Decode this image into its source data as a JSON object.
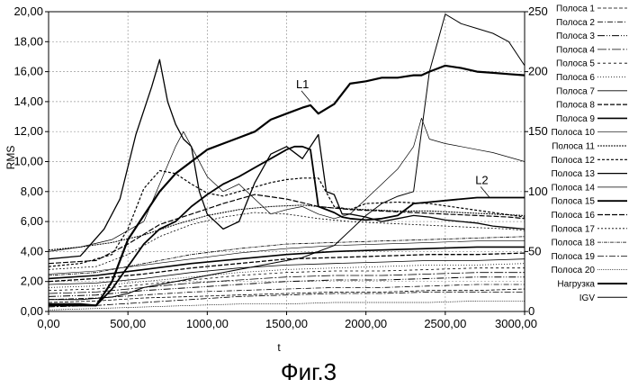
{
  "figure_caption": "Фиг.3",
  "chart_data": {
    "type": "line",
    "xlabel": "t",
    "ylabel": "RMS",
    "xlim": [
      0,
      3000
    ],
    "ylim": [
      0,
      20
    ],
    "y2lim": [
      0,
      250
    ],
    "grid": true,
    "legend_position": "right",
    "x_ticks": [
      "0,00",
      "500,00",
      "1000,00",
      "1500,00",
      "2000,00",
      "2500,00",
      "3000,00"
    ],
    "y_ticks": [
      "0,00",
      "2,00",
      "4,00",
      "6,00",
      "8,00",
      "10,00",
      "12,00",
      "14,00",
      "16,00",
      "18,00",
      "20,00"
    ],
    "y2_ticks": [
      "0",
      "50",
      "100",
      "150",
      "200",
      "250"
    ],
    "annotations": [
      {
        "text": "L1",
        "x": 1650,
        "y": 14.0
      },
      {
        "text": "L2",
        "x": 2780,
        "y": 7.6
      }
    ],
    "series": [
      {
        "name": "Полоса 1",
        "x": [
          0,
          300,
          600,
          900,
          1200,
          1500,
          1800,
          2100,
          2400,
          2700,
          3000
        ],
        "values": [
          0.6,
          0.7,
          0.9,
          1.0,
          1.1,
          1.2,
          1.3,
          1.3,
          1.4,
          1.4,
          1.5
        ]
      },
      {
        "name": "Полоса 2",
        "x": [
          0,
          300,
          600,
          900,
          1200,
          1500,
          1800,
          2100,
          2400,
          2700,
          3000
        ],
        "values": [
          0.8,
          0.9,
          1.1,
          1.3,
          1.4,
          1.5,
          1.6,
          1.6,
          1.7,
          1.8,
          1.8
        ]
      },
      {
        "name": "Полоса 3",
        "x": [
          0,
          300,
          600,
          900,
          1200,
          1500,
          1800,
          2100,
          2400,
          2700,
          3000
        ],
        "values": [
          1.0,
          1.1,
          1.4,
          1.6,
          1.8,
          2.0,
          2.1,
          2.1,
          2.2,
          2.3,
          2.3
        ]
      },
      {
        "name": "Полоса 4",
        "x": [
          0,
          300,
          600,
          900,
          1200,
          1500,
          1800,
          2100,
          2400,
          2700,
          3000
        ],
        "values": [
          1.2,
          1.3,
          1.6,
          1.9,
          2.1,
          2.3,
          2.4,
          2.4,
          2.5,
          2.6,
          2.6
        ]
      },
      {
        "name": "Полоса 5",
        "x": [
          0,
          300,
          600,
          900,
          1200,
          1500,
          1800,
          2100,
          2400,
          2700,
          3000
        ],
        "values": [
          1.4,
          1.5,
          1.8,
          2.1,
          2.4,
          2.6,
          2.7,
          2.7,
          2.8,
          2.9,
          2.9
        ]
      },
      {
        "name": "Полоса 6",
        "x": [
          0,
          300,
          600,
          900,
          1200,
          1500,
          1800,
          2100,
          2400,
          2700,
          3000
        ],
        "values": [
          1.6,
          1.7,
          2.0,
          2.3,
          2.6,
          2.8,
          2.9,
          3.0,
          3.1,
          3.1,
          3.2
        ]
      },
      {
        "name": "Полоса 7",
        "x": [
          0,
          300,
          600,
          900,
          1200,
          1500,
          1800,
          2100,
          2400,
          2700,
          3000
        ],
        "values": [
          1.8,
          1.9,
          2.2,
          2.6,
          2.9,
          3.1,
          3.2,
          3.3,
          3.4,
          3.4,
          3.5
        ]
      },
      {
        "name": "Полоса 8",
        "x": [
          0,
          300,
          600,
          900,
          1200,
          1500,
          1800,
          2100,
          2400,
          2700,
          3000
        ],
        "values": [
          2.0,
          2.2,
          2.5,
          2.9,
          3.2,
          3.5,
          3.6,
          3.7,
          3.8,
          3.8,
          3.9
        ]
      },
      {
        "name": "Полоса 9",
        "x": [
          0,
          300,
          600,
          900,
          1200,
          1500,
          1800,
          2100,
          2400,
          2700,
          3000
        ],
        "values": [
          2.2,
          2.4,
          2.8,
          3.2,
          3.5,
          3.8,
          4.0,
          4.1,
          4.2,
          4.3,
          4.3
        ]
      },
      {
        "name": "Полоса 10",
        "x": [
          0,
          300,
          600,
          900,
          1200,
          1500,
          1800,
          2100,
          2400,
          2700,
          3000
        ],
        "values": [
          2.5,
          2.7,
          3.1,
          3.5,
          3.9,
          4.2,
          4.4,
          4.5,
          4.6,
          4.7,
          4.7
        ]
      },
      {
        "name": "Полоса 11",
        "x": [
          0,
          200,
          400,
          600,
          800,
          1000,
          1200,
          1400,
          1600,
          1800,
          2000,
          2200,
          2400,
          2600,
          2800,
          3000
        ],
        "values": [
          4.1,
          4.3,
          4.6,
          5.1,
          5.8,
          6.4,
          6.8,
          7.0,
          7.1,
          6.9,
          6.8,
          6.7,
          6.7,
          6.6,
          6.5,
          6.4
        ]
      },
      {
        "name": "Полоса 12",
        "x": [
          0,
          200,
          400,
          500,
          600,
          700,
          800,
          900,
          1000,
          1100,
          1200,
          1300,
          1400,
          1500,
          1600,
          1700,
          1800,
          1900,
          2000,
          2200,
          2400,
          2600,
          2800,
          3000
        ],
        "values": [
          3.0,
          3.2,
          3.8,
          5.5,
          8.2,
          9.4,
          9.2,
          8.5,
          7.9,
          7.7,
          8.0,
          8.3,
          8.6,
          8.8,
          8.9,
          8.9,
          7.0,
          6.8,
          7.2,
          7.3,
          7.2,
          6.9,
          6.6,
          6.3
        ]
      },
      {
        "name": "Полоса 13",
        "x": [
          0,
          200,
          350,
          450,
          550,
          650,
          700,
          750,
          800,
          850,
          900,
          950,
          1000,
          1100,
          1200,
          1300,
          1400,
          1500,
          1600,
          1700,
          1750,
          1800,
          1850,
          1900,
          2000,
          2100,
          2200,
          2300,
          2400,
          2500,
          2600,
          2700,
          2800,
          2900,
          3000
        ],
        "values": [
          3.5,
          3.7,
          5.5,
          7.5,
          11.8,
          15.0,
          16.8,
          14.0,
          12.5,
          11.5,
          11.0,
          8.0,
          6.5,
          5.5,
          6.0,
          8.6,
          10.5,
          11.0,
          10.2,
          11.8,
          8.0,
          7.8,
          6.5,
          6.5,
          6.3,
          6.0,
          6.2,
          6.4,
          6.3,
          6.1,
          6.0,
          5.9,
          5.7,
          5.6,
          5.5
        ]
      },
      {
        "name": "Полоса 14",
        "x": [
          0,
          200,
          400,
          600,
          700,
          800,
          850,
          900,
          1000,
          1100,
          1200,
          1300,
          1400,
          1500,
          1600,
          1700,
          1800,
          1900,
          2000,
          2100,
          2200,
          2300,
          2350,
          2400,
          2500,
          2600,
          2700,
          2800,
          2900,
          3000
        ],
        "values": [
          4.0,
          4.3,
          4.8,
          6.0,
          8.5,
          11.0,
          12.0,
          11.0,
          9.0,
          8.0,
          8.5,
          7.5,
          6.5,
          6.8,
          7.0,
          6.5,
          6.2,
          6.5,
          7.5,
          8.5,
          9.5,
          11.0,
          12.9,
          11.5,
          11.2,
          11.0,
          10.8,
          10.6,
          10.3,
          10.0
        ]
      },
      {
        "name": "Полоса 15",
        "x": [
          0,
          200,
          300,
          400,
          500,
          600,
          700,
          800,
          900,
          1000,
          1100,
          1200,
          1300,
          1400,
          1500,
          1550,
          1600,
          1650,
          1700,
          1800,
          1850,
          1900,
          2000,
          2100,
          2200,
          2300,
          2400,
          2500,
          2600,
          2700,
          2800,
          2900,
          3000
        ],
        "values": [
          0.5,
          0.5,
          0.4,
          1.5,
          3.0,
          4.5,
          5.5,
          6.0,
          7.0,
          7.8,
          8.5,
          9.0,
          9.6,
          10.2,
          10.8,
          11.0,
          11.0,
          10.8,
          7.0,
          6.6,
          6.3,
          6.2,
          6.1,
          6.2,
          6.4,
          7.2,
          7.3,
          7.4,
          7.5,
          7.6,
          7.6,
          7.6,
          7.6
        ]
      },
      {
        "name": "Полоса 16",
        "x": [
          0,
          300,
          500,
          700,
          900,
          1100,
          1300,
          1500,
          1700,
          1900,
          2100,
          2300,
          2500,
          2700,
          2900,
          3000
        ],
        "values": [
          3.2,
          3.4,
          4.5,
          5.8,
          6.5,
          7.2,
          7.8,
          7.5,
          7.0,
          6.8,
          6.7,
          6.6,
          6.5,
          6.4,
          6.3,
          6.2
        ]
      },
      {
        "name": "Полоса 17",
        "x": [
          0,
          300,
          500,
          700,
          900,
          1100,
          1300,
          1500,
          1700,
          1900,
          2100,
          2300,
          2500,
          2700,
          2900,
          3000
        ],
        "values": [
          2.8,
          3.0,
          3.8,
          5.0,
          5.8,
          6.3,
          6.6,
          6.5,
          6.2,
          6.0,
          5.9,
          5.8,
          5.7,
          5.6,
          5.5,
          5.4
        ]
      },
      {
        "name": "Полоса 18",
        "x": [
          0,
          300,
          600,
          900,
          1200,
          1500,
          1800,
          2100,
          2400,
          2700,
          3000
        ],
        "values": [
          2.4,
          2.6,
          3.2,
          3.8,
          4.2,
          4.5,
          4.6,
          4.7,
          4.8,
          4.9,
          5.0
        ]
      },
      {
        "name": "Полоса 19",
        "x": [
          0,
          300,
          600,
          900,
          1200,
          1500,
          1800,
          2100,
          2400,
          2700,
          3000
        ],
        "values": [
          0.3,
          0.4,
          0.6,
          0.8,
          1.0,
          1.1,
          1.2,
          1.2,
          1.3,
          1.3,
          1.3
        ]
      },
      {
        "name": "Полоса 20",
        "x": [
          0,
          300,
          600,
          900,
          1200,
          1500,
          1800,
          2100,
          2400,
          2700,
          3000
        ],
        "values": [
          0.1,
          0.2,
          0.3,
          0.4,
          0.5,
          0.5,
          0.6,
          0.6,
          0.6,
          0.7,
          0.7
        ]
      },
      {
        "name": "Нагрузка",
        "axis": "right",
        "x": [
          0,
          300,
          400,
          500,
          600,
          700,
          800,
          900,
          1000,
          1100,
          1200,
          1300,
          1400,
          1500,
          1600,
          1650,
          1700,
          1800,
          1900,
          2000,
          2100,
          2200,
          2250,
          2300,
          2350,
          2400,
          2500,
          2600,
          2700,
          2800,
          2900,
          3000
        ],
        "values": [
          5,
          5,
          25,
          60,
          80,
          100,
          115,
          125,
          135,
          140,
          145,
          150,
          160,
          165,
          170,
          172,
          165,
          173,
          190,
          192,
          195,
          195,
          196,
          197,
          197,
          200,
          205,
          203,
          200,
          199,
          198,
          197
        ]
      },
      {
        "name": "IGV",
        "axis": "right",
        "x": [
          0,
          200,
          400,
          500,
          600,
          800,
          1000,
          1200,
          1400,
          1600,
          1700,
          1800,
          2000,
          2100,
          2200,
          2300,
          2400,
          2500,
          2600,
          2700,
          2800,
          2900,
          3000
        ],
        "values": [
          10,
          10,
          12,
          15,
          20,
          25,
          30,
          35,
          40,
          45,
          50,
          55,
          80,
          90,
          96,
          100,
          200,
          248,
          240,
          236,
          232,
          225,
          205
        ]
      }
    ]
  }
}
